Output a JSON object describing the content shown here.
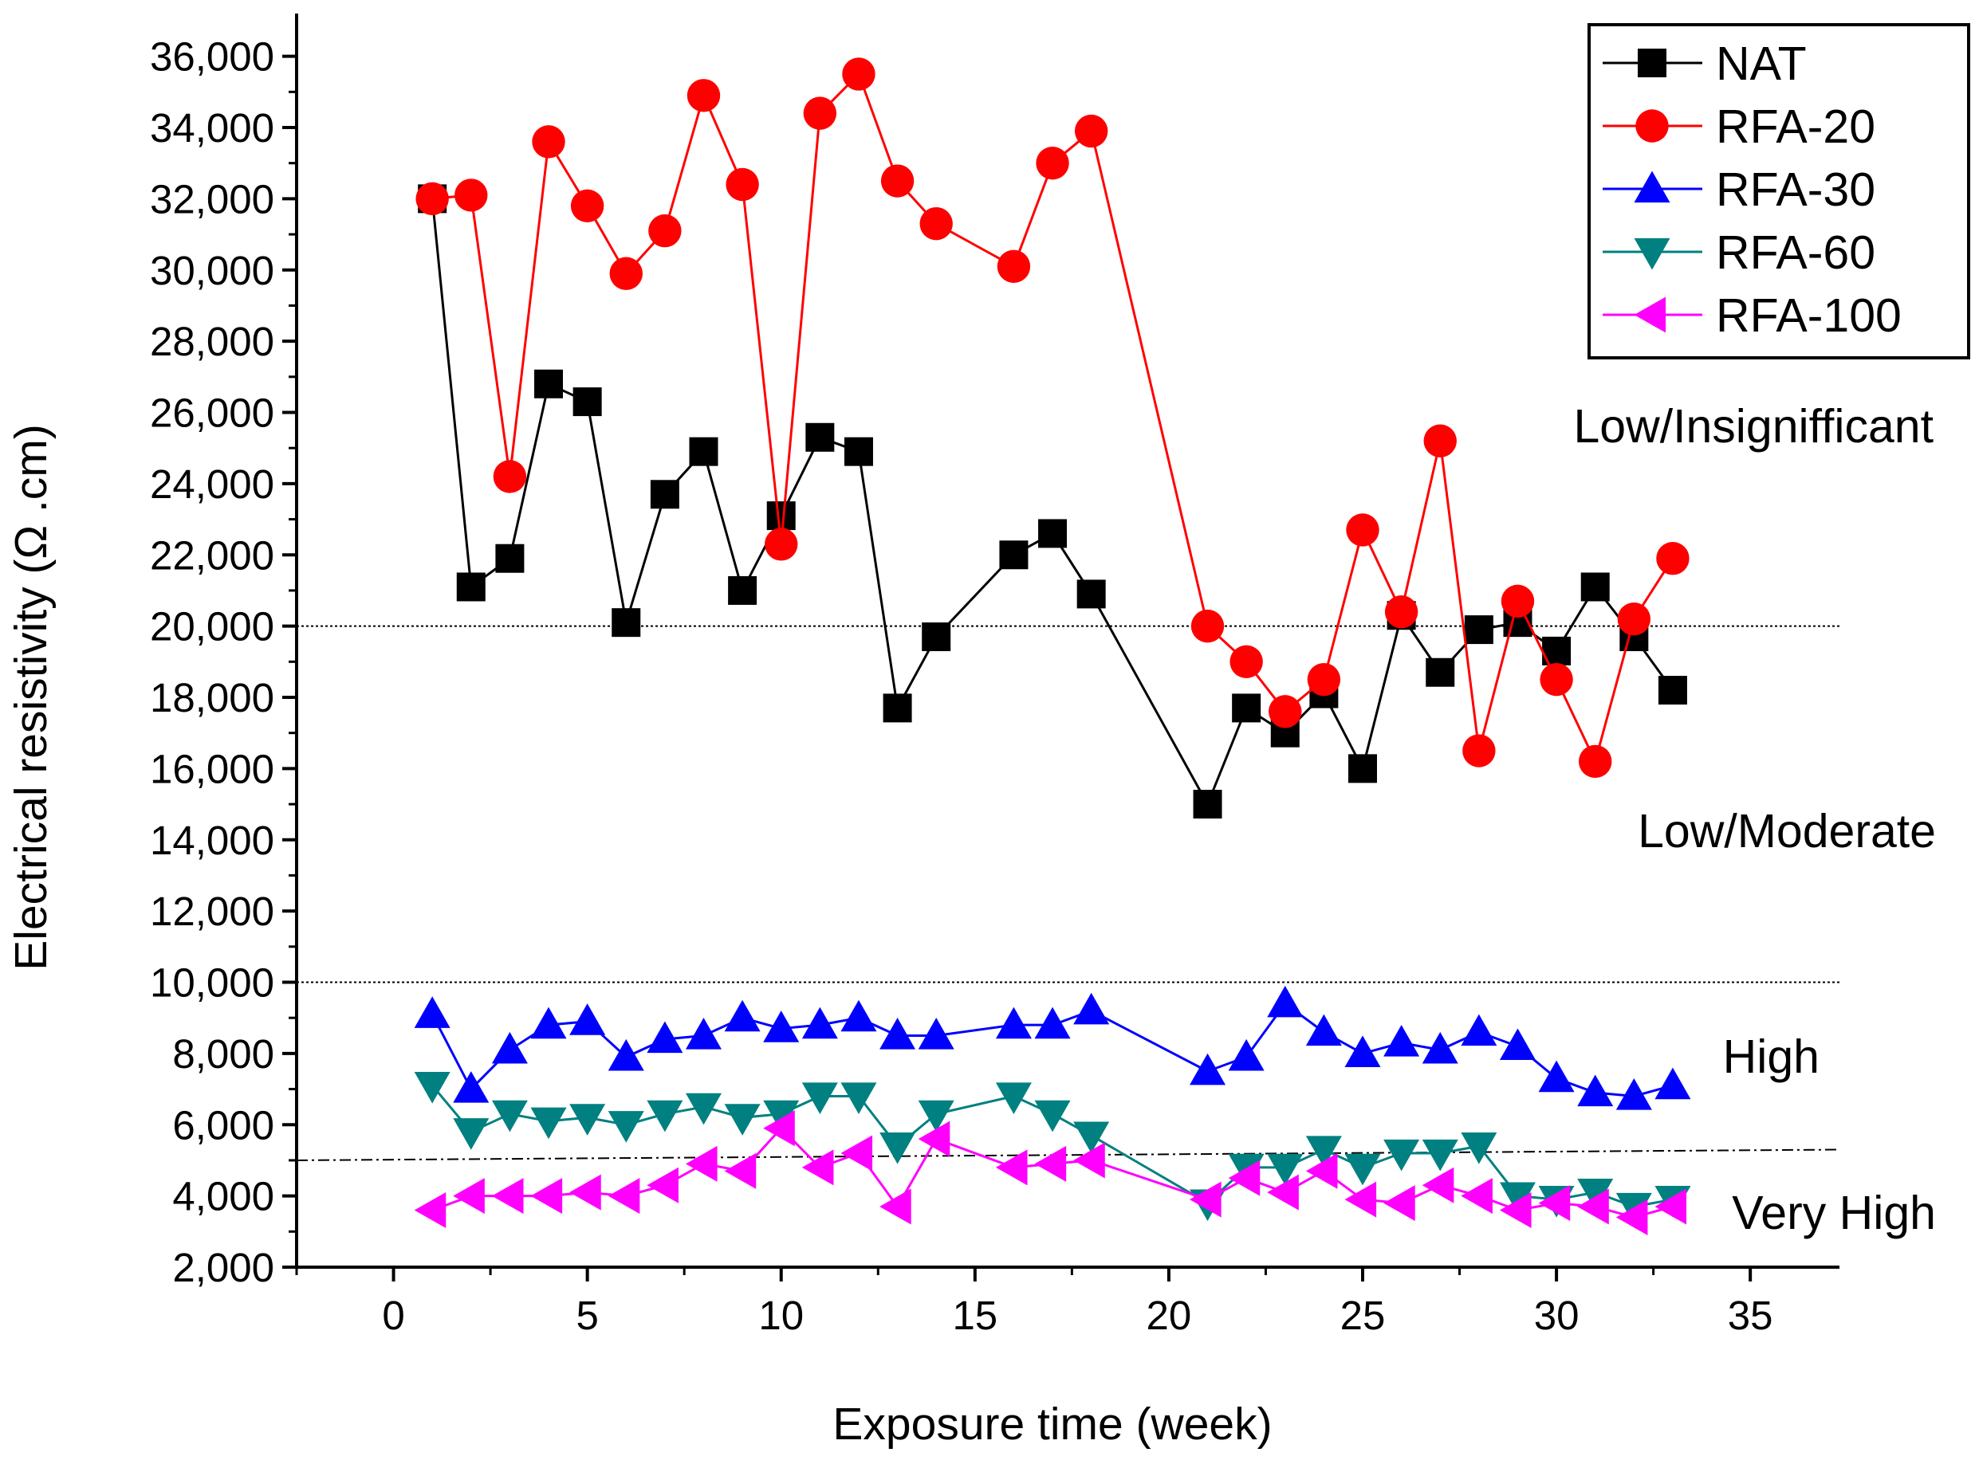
{
  "chart_data": {
    "type": "line",
    "title": "",
    "xlabel": "Exposure time (week)",
    "ylabel": "Electrical resistivity (Ω .cm)",
    "xlim": [
      -2.5,
      37.3
    ],
    "ylim": [
      2000,
      37200
    ],
    "xticks": [
      0,
      5,
      10,
      15,
      20,
      25,
      30,
      35
    ],
    "xtick_labels": [
      "0",
      "5",
      "10",
      "15",
      "20",
      "25",
      "30",
      "35"
    ],
    "yticks": [
      2000,
      4000,
      6000,
      8000,
      10000,
      12000,
      14000,
      16000,
      18000,
      20000,
      22000,
      24000,
      26000,
      28000,
      30000,
      32000,
      34000,
      36000
    ],
    "ytick_labels": [
      "2,000",
      "4,000",
      "6,000",
      "8,000",
      "10,000",
      "12,000",
      "14,000",
      "16,000",
      "18,000",
      "20,000",
      "22,000",
      "24,000",
      "26,000",
      "28,000",
      "30,000",
      "32,000",
      "34,000",
      "36,000"
    ],
    "grid": false,
    "legend_position": "top-right",
    "x": [
      1,
      2,
      3,
      4,
      5,
      6,
      7,
      8,
      9,
      10,
      11,
      12,
      13,
      14,
      16,
      17,
      18,
      21,
      22,
      23,
      24,
      25,
      26,
      27,
      28,
      29,
      30,
      31,
      32,
      33
    ],
    "series": [
      {
        "name": "NAT",
        "color": "#000000",
        "marker": "square",
        "values": [
          32000,
          21100,
          21900,
          26800,
          26300,
          20100,
          23700,
          24900,
          21000,
          23100,
          25300,
          24900,
          17700,
          19700,
          22000,
          22600,
          20900,
          15000,
          17700,
          17000,
          18100,
          16000,
          20300,
          18700,
          19900,
          20100,
          19300,
          21100,
          19700,
          18200
        ]
      },
      {
        "name": "RFA-20",
        "color": "#ff0000",
        "marker": "circle",
        "values": [
          32000,
          32100,
          24200,
          33600,
          31800,
          29900,
          31100,
          34900,
          32400,
          22300,
          34400,
          35500,
          32500,
          31300,
          30100,
          33000,
          33900,
          20000,
          19000,
          17600,
          18500,
          22700,
          20400,
          25200,
          16500,
          20700,
          18500,
          16200,
          20200,
          21900
        ]
      },
      {
        "name": "RFA-30",
        "color": "#0000ff",
        "marker": "triangle-up",
        "values": [
          9100,
          7000,
          8100,
          8800,
          8900,
          7900,
          8400,
          8500,
          9000,
          8700,
          8800,
          9000,
          8500,
          8500,
          8800,
          8800,
          9200,
          7500,
          7900,
          9400,
          8600,
          8000,
          8300,
          8100,
          8600,
          8200,
          7300,
          6900,
          6800,
          7100
        ]
      },
      {
        "name": "RFA-60",
        "color": "#008080",
        "marker": "triangle-down",
        "values": [
          7100,
          5800,
          6300,
          6100,
          6200,
          6000,
          6300,
          6500,
          6200,
          6300,
          6800,
          6800,
          5400,
          6300,
          6800,
          6300,
          5700,
          3800,
          4800,
          4800,
          5300,
          4800,
          5200,
          5200,
          5400,
          4000,
          3900,
          4100,
          3700,
          3900
        ]
      },
      {
        "name": "RFA-100",
        "color": "#ff00ff",
        "marker": "triangle-left",
        "values": [
          3600,
          4000,
          4000,
          4000,
          4100,
          4000,
          4300,
          4900,
          4700,
          5900,
          4800,
          5200,
          3700,
          5600,
          4800,
          4900,
          5000,
          3900,
          4500,
          4100,
          4700,
          3900,
          3800,
          4300,
          4000,
          3600,
          3800,
          3700,
          3400,
          3700
        ]
      }
    ],
    "reference_lines": [
      {
        "label": "Low/Insignifficant",
        "y": 20000,
        "style": "dotted"
      },
      {
        "label": "Low/Moderate",
        "y": 10000,
        "style": "dotted"
      },
      {
        "label": "High",
        "y_start": 5000,
        "y_end": 5300,
        "style": "dash-dot"
      }
    ],
    "zone_labels": [
      "Low/Insignifficant",
      "Low/Moderate",
      "High",
      "Very High"
    ]
  }
}
